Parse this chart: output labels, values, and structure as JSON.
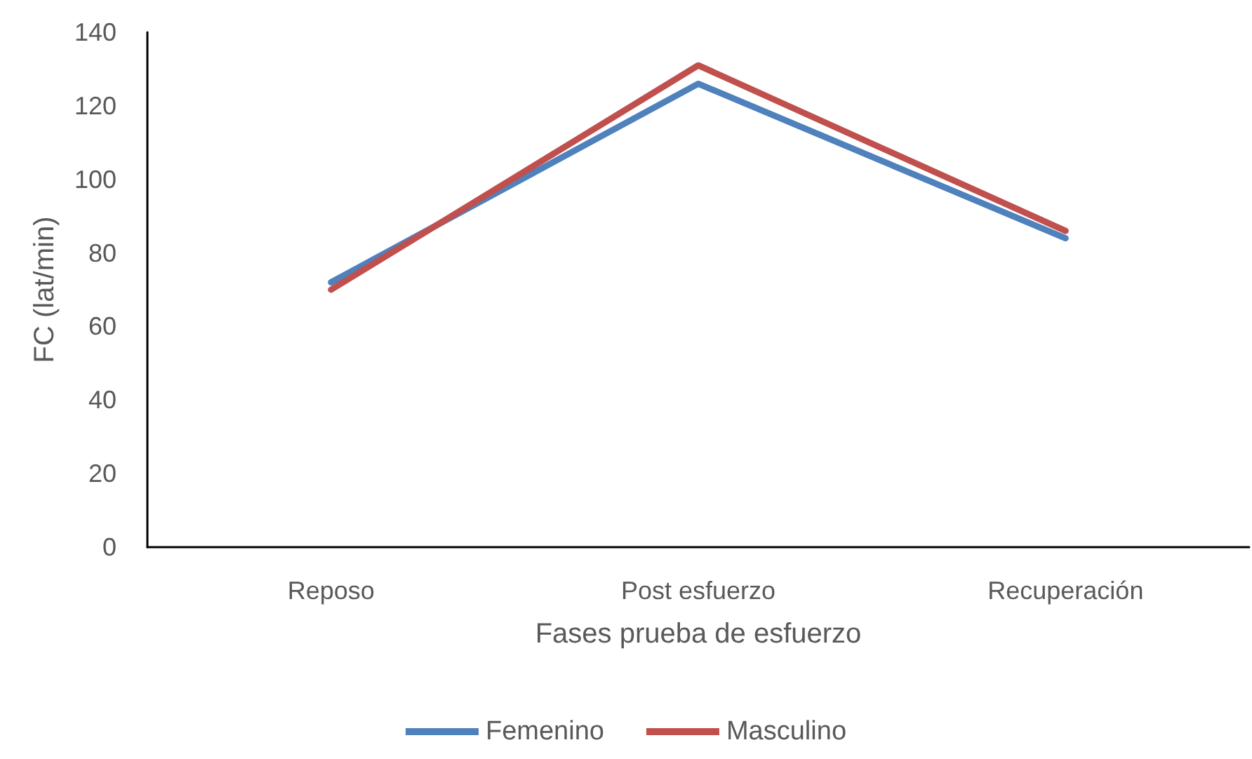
{
  "chart_data": {
    "type": "line",
    "xlabel": "Fases prueba de esfuerzo",
    "ylabel": "FC (lat/min)",
    "categories": [
      "Reposo",
      "Post esfuerzo",
      "Recuperación"
    ],
    "series": [
      {
        "name": "Femenino",
        "color": "#4f81bd",
        "values": [
          72,
          126,
          84
        ]
      },
      {
        "name": "Masculino",
        "color": "#c0504d",
        "values": [
          70,
          131,
          86
        ]
      }
    ],
    "ylim": [
      0,
      140
    ],
    "yticks": [
      0,
      20,
      40,
      60,
      80,
      100,
      120,
      140
    ],
    "grid": false,
    "legend": "bottom",
    "marker": "none",
    "line_style": "solid"
  }
}
